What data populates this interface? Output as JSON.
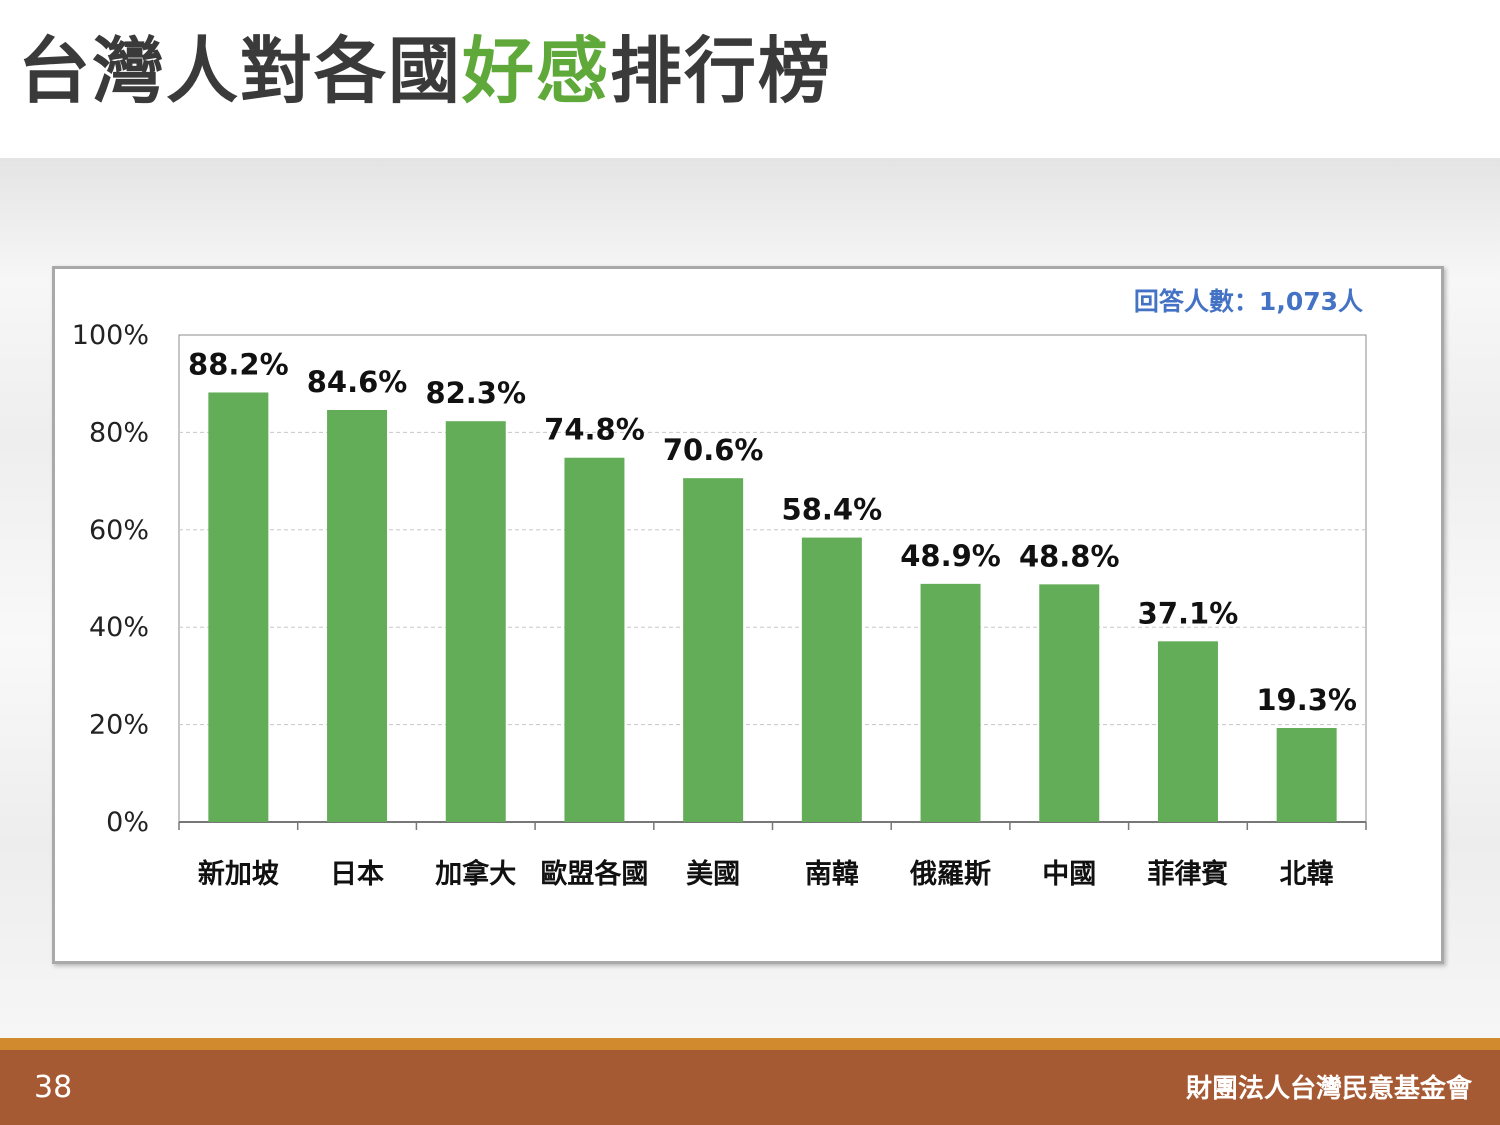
{
  "slide": {
    "title_before": "台灣人對各國",
    "title_highlight": "好感",
    "title_after": "排行榜",
    "page_number": "38",
    "organization": "財團法人台灣民意基金會"
  },
  "colors": {
    "bar": "#64ad58",
    "title_highlight": "#5fa83a",
    "footer": "#a65a33",
    "footer_stripe": "#d18b2e",
    "respondents_text": "#4472c4"
  },
  "chart_data": {
    "type": "bar",
    "annotation": "回答人數：1,073人",
    "categories": [
      "新加坡",
      "日本",
      "加拿大",
      "歐盟各國",
      "美國",
      "南韓",
      "俄羅斯",
      "中國",
      "菲律賓",
      "北韓"
    ],
    "values": [
      88.2,
      84.6,
      82.3,
      74.8,
      70.6,
      58.4,
      48.9,
      48.8,
      37.1,
      19.3
    ],
    "value_labels": [
      "88.2%",
      "84.6%",
      "82.3%",
      "74.8%",
      "70.6%",
      "58.4%",
      "48.9%",
      "48.8%",
      "37.1%",
      "19.3%"
    ],
    "ylim": [
      0,
      100
    ],
    "yticks": [
      0,
      20,
      40,
      60,
      80,
      100
    ],
    "ytick_labels": [
      "0%",
      "20%",
      "40%",
      "60%",
      "80%",
      "100%"
    ],
    "grid": true,
    "legend": "none"
  }
}
